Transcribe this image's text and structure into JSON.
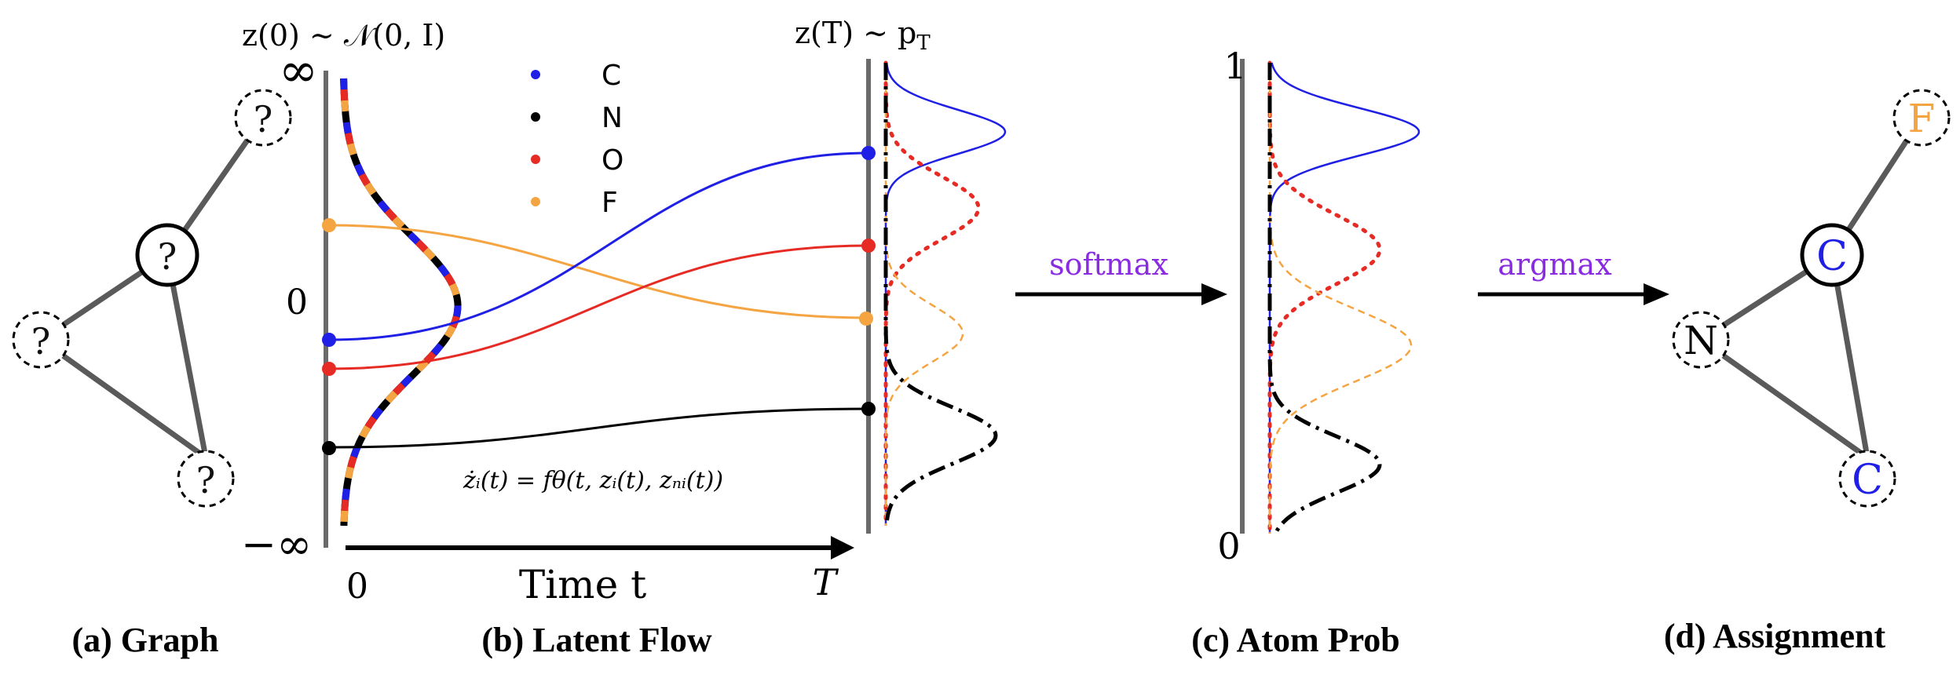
{
  "colors": {
    "C": "#1f1fe6",
    "N": "#000000",
    "O": "#e62a24",
    "F": "#f5a442",
    "purple": "#8a2be2",
    "axis": "#555555"
  },
  "panel_a": {
    "caption": "(a) Graph",
    "nodes": [
      {
        "id": "center",
        "label": "?"
      },
      {
        "id": "top",
        "label": "?"
      },
      {
        "id": "left",
        "label": "?"
      },
      {
        "id": "bottom",
        "label": "?"
      }
    ]
  },
  "panel_b": {
    "caption": "(b) Latent Flow",
    "title_left": "z(0) ∼ 𝒩(0, I)",
    "title_right": "z(T) ∼ p",
    "title_right_sub": "T",
    "y_top": "∞",
    "y_mid": "0",
    "y_bottom": "−∞",
    "x_start": "0",
    "x_end": "T",
    "x_label": "Time t",
    "equation": "żᵢ(t) = fθ(t, zᵢ(t), zₙᵢ(t))",
    "legend": [
      {
        "label": "C",
        "key": "C"
      },
      {
        "label": "N",
        "key": "N"
      },
      {
        "label": "O",
        "key": "O"
      },
      {
        "label": "F",
        "key": "F"
      }
    ]
  },
  "arrow1_label": "softmax",
  "panel_c": {
    "caption": "(c) Atom Prob",
    "y_top": "1",
    "y_bottom": "0"
  },
  "arrow2_label": "argmax",
  "panel_d": {
    "caption": "(d) Assignment",
    "nodes": [
      {
        "id": "top",
        "label": "F",
        "key": "F"
      },
      {
        "id": "center",
        "label": "C",
        "key": "C"
      },
      {
        "id": "left",
        "label": "N",
        "key": "N"
      },
      {
        "id": "bottom",
        "label": "C",
        "key": "C"
      }
    ]
  }
}
